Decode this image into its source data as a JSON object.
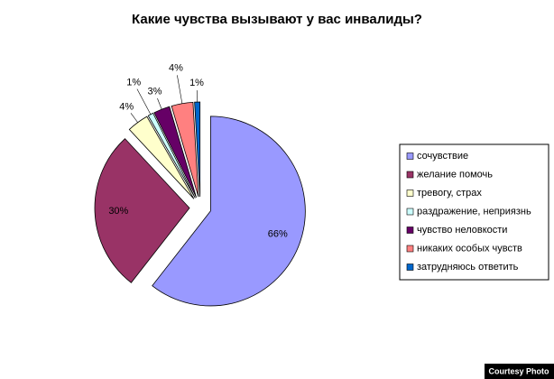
{
  "chart_data": {
    "type": "pie",
    "title": "Какие чувства вызывают у вас инвалиды?",
    "categories": [
      "сочувствие",
      "желание помочь",
      "тревогу, страх",
      "раздражение, неприязнь",
      "чувство неловкости",
      "никаких особых чувств",
      "затрудняюсь ответить"
    ],
    "values": [
      66,
      30,
      4,
      1,
      3,
      4,
      1
    ],
    "value_labels": [
      "66%",
      "30%",
      "4%",
      "1%",
      "3%",
      "4%",
      "1%"
    ],
    "colors": [
      "#9999ff",
      "#993366",
      "#ffffcc",
      "#ccffff",
      "#660066",
      "#ff8080",
      "#0066cc"
    ],
    "legend": "right",
    "annotation": "Courtesy Photo"
  }
}
